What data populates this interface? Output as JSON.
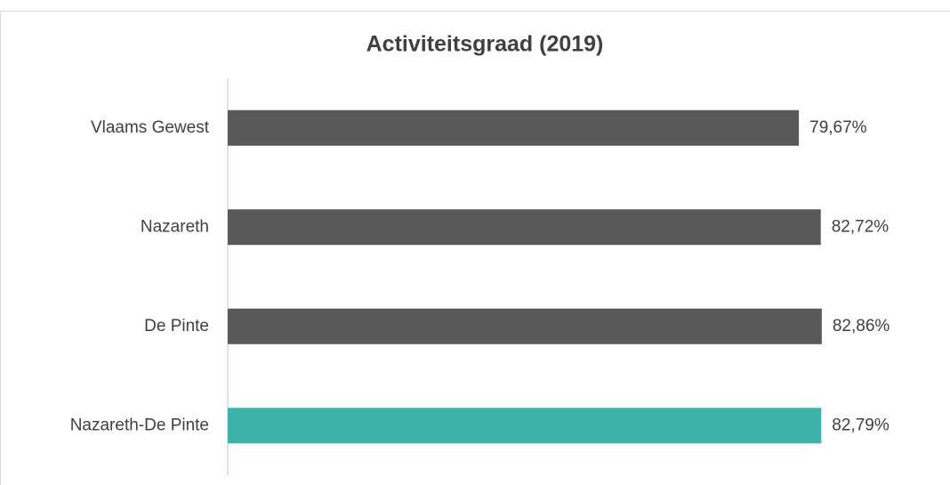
{
  "chart_data": {
    "type": "bar",
    "orientation": "horizontal",
    "title": "Activiteitsgraad (2019)",
    "categories": [
      "Vlaams Gewest",
      "Nazareth",
      "De Pinte",
      "Nazareth-De Pinte"
    ],
    "values": [
      79.67,
      82.72,
      82.86,
      82.79
    ],
    "value_labels": [
      "79,67%",
      "82,72%",
      "82,86%",
      "82,79%"
    ],
    "colors": [
      "#595959",
      "#595959",
      "#595959",
      "#3bb3a8"
    ],
    "xlim": [
      0,
      100
    ]
  }
}
